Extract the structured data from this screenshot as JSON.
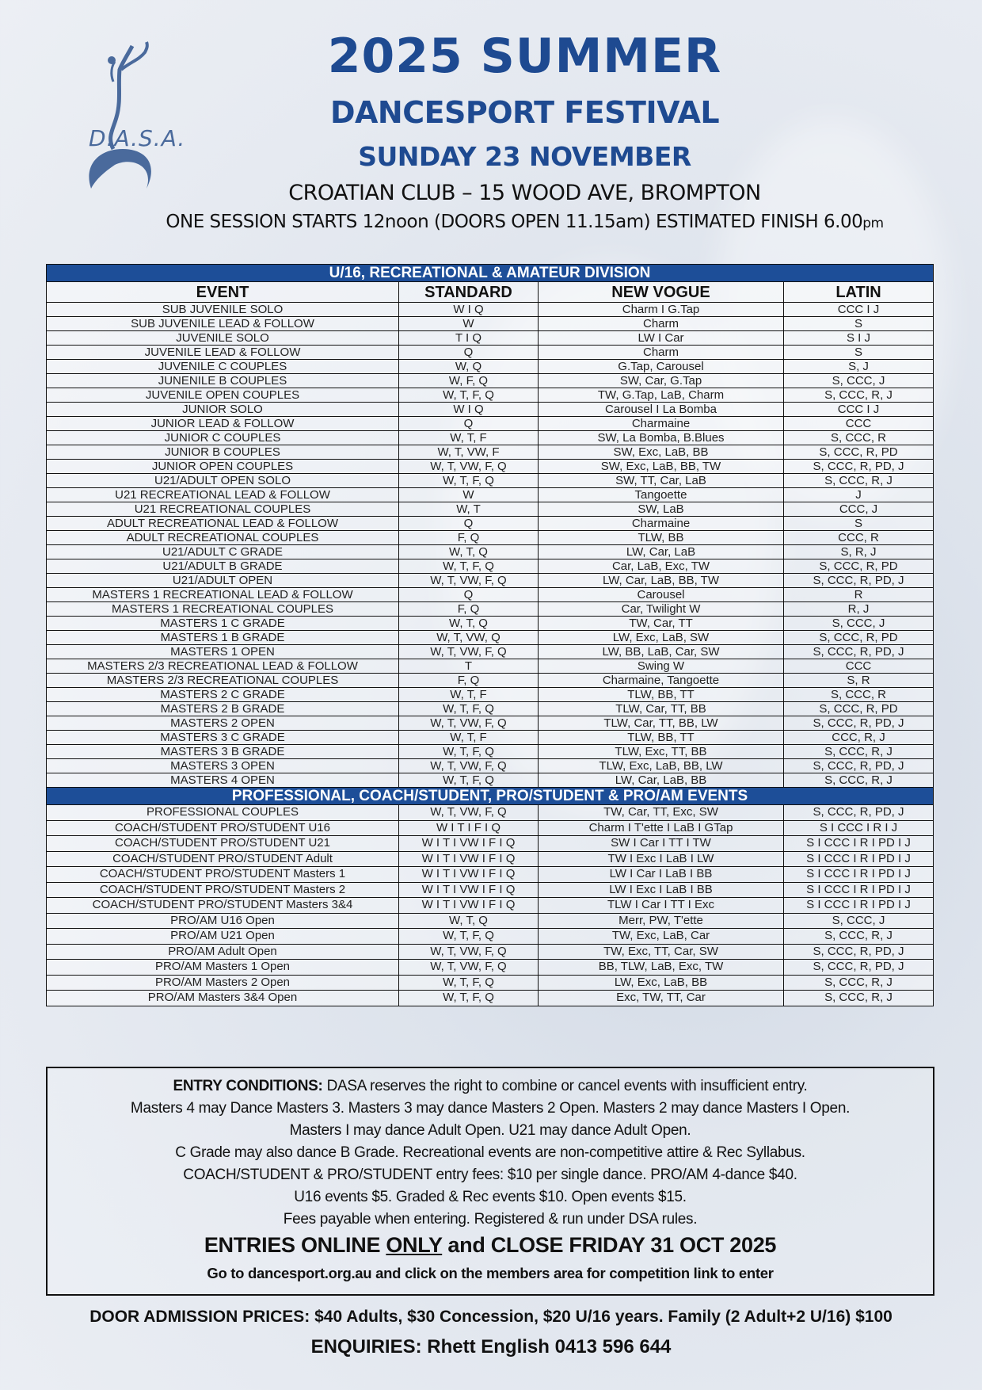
{
  "logo": {
    "text": "D.A.S.A.",
    "color": "#4a6a9c"
  },
  "header": {
    "title": "2025 SUMMER",
    "subtitle": "DANCESPORT FESTIVAL",
    "date": "SUNDAY 23 NOVEMBER",
    "venue": "CROATIAN CLUB – 15 WOOD AVE, BROMPTON",
    "session": "ONE SESSION STARTS 12noon (DOORS OPEN 11.15am) ESTIMATED FINISH 6.00",
    "session_suffix": "pm"
  },
  "colors": {
    "brand_blue": "#1e4a91",
    "section_bar": "#1d4e98"
  },
  "table": {
    "columns": [
      "EVENT",
      "STANDARD",
      "NEW VOGUE",
      "LATIN"
    ],
    "sections": [
      {
        "title": "U/16, RECREATIONAL & AMATEUR DIVISION",
        "rows": [
          [
            "SUB JUVENILE  SOLO",
            "W I Q",
            "Charm  I  G.Tap",
            "CCC  I  J"
          ],
          [
            "SUB JUVENILE  LEAD & FOLLOW",
            "W",
            "Charm",
            "S"
          ],
          [
            "JUVENILE  SOLO",
            "T I Q",
            "LW I Car",
            "S I J"
          ],
          [
            "JUVENILE  LEAD & FOLLOW",
            "Q",
            "Charm",
            "S"
          ],
          [
            "JUVENILE  C  COUPLES",
            "W, Q",
            "G.Tap, Carousel",
            "S, J"
          ],
          [
            "JUNENILE  B  COUPLES",
            "W, F, Q",
            "SW, Car, G.Tap",
            "S, CCC, J"
          ],
          [
            "JUVENILE  OPEN COUPLES",
            "W, T, F, Q",
            "TW, G.Tap, LaB, Charm",
            "S, CCC, R, J"
          ],
          [
            "JUNIOR  SOLO",
            "W I Q",
            "Carousel  I  La Bomba",
            "CCC  I  J"
          ],
          [
            "JUNIOR LEAD & FOLLOW",
            "Q",
            "Charmaine",
            "CCC"
          ],
          [
            "JUNIOR  C COUPLES",
            "W, T, F",
            "SW, La Bomba, B.Blues",
            "S, CCC, R"
          ],
          [
            "JUNIOR  B COUPLES",
            "W, T, VW, F",
            "SW, Exc, LaB, BB",
            "S, CCC, R, PD"
          ],
          [
            "JUNIOR  OPEN COUPLES",
            "W, T, VW, F, Q",
            "SW, Exc, LaB, BB, TW",
            "S, CCC, R, PD, J"
          ],
          [
            "U21/ADULT OPEN SOLO",
            "W, T, F, Q",
            "SW, TT, Car, LaB",
            "S, CCC, R, J"
          ],
          [
            "U21  RECREATIONAL LEAD & FOLLOW",
            "W",
            "Tangoette",
            "J"
          ],
          [
            "U21  RECREATIONAL COUPLES",
            "W, T",
            "SW, LaB",
            "CCC, J"
          ],
          [
            "ADULT  RECREATIONAL LEAD & FOLLOW",
            "Q",
            "Charmaine",
            "S"
          ],
          [
            "ADULT  RECREATIONAL COUPLES",
            "F, Q",
            "TLW, BB",
            "CCC, R"
          ],
          [
            "U21/ADULT  C GRADE",
            "W, T, Q",
            "LW, Car, LaB",
            "S, R, J"
          ],
          [
            "U21/ADULT  B GRADE",
            "W, T, F, Q",
            "Car, LaB, Exc, TW",
            "S, CCC, R, PD"
          ],
          [
            "U21/ADULT  OPEN",
            "W, T, VW, F, Q",
            "LW, Car, LaB, BB, TW",
            "S, CCC, R, PD, J"
          ],
          [
            "MASTERS 1  RECREATIONAL LEAD & FOLLOW",
            "Q",
            "Carousel",
            "R"
          ],
          [
            "MASTERS 1  RECREATIONAL COUPLES",
            "F, Q",
            "Car, Twilight W",
            "R, J"
          ],
          [
            "MASTERS 1  C GRADE",
            "W, T, Q",
            "TW, Car, TT",
            "S, CCC, J"
          ],
          [
            "MASTERS 1  B GRADE",
            "W, T, VW, Q",
            "LW, Exc, LaB, SW",
            "S, CCC, R, PD"
          ],
          [
            "MASTERS 1  OPEN",
            "W, T, VW, F, Q",
            "LW, BB, LaB, Car, SW",
            "S, CCC, R, PD, J"
          ],
          [
            "MASTERS 2/3  RECREATIONAL LEAD & FOLLOW",
            "T",
            "Swing W",
            "CCC"
          ],
          [
            "MASTERS 2/3  RECREATIONAL COUPLES",
            "F, Q",
            "Charmaine, Tangoette",
            "S, R"
          ],
          [
            "MASTERS 2  C GRADE",
            "W, T, F",
            "TLW, BB, TT",
            "S, CCC, R"
          ],
          [
            "MASTERS 2  B GRADE",
            "W, T, F, Q",
            "TLW, Car, TT, BB",
            "S, CCC, R, PD"
          ],
          [
            "MASTERS 2  OPEN",
            "W, T, VW, F, Q",
            "TLW, Car, TT, BB, LW",
            "S, CCC, R, PD, J"
          ],
          [
            "MASTERS 3  C GRADE",
            "W, T, F",
            "TLW, BB, TT",
            "CCC, R, J"
          ],
          [
            "MASTERS 3  B GRADE",
            "W, T, F, Q",
            "TLW, Exc, TT, BB",
            "S, CCC, R, J"
          ],
          [
            "MASTERS 3  OPEN",
            "W, T, VW, F, Q",
            "TLW, Exc, LaB, BB, LW",
            "S, CCC, R, PD, J"
          ],
          [
            "MASTERS 4  OPEN",
            "W, T, F, Q",
            "LW, Car, LaB, BB",
            "S, CCC, R, J"
          ]
        ]
      },
      {
        "title": "PROFESSIONAL, COACH/STUDENT, PRO/STUDENT & PRO/AM  EVENTS",
        "rows": [
          [
            "PROFESSIONAL COUPLES",
            "W, T, VW, F, Q",
            "TW, Car, TT, Exc, SW",
            "S, CCC, R, PD, J"
          ],
          [
            "COACH/STUDENT  PRO/STUDENT  U16",
            "W I T I F I Q",
            "Charm I T'ette I LaB I GTap",
            "S I CCC I R I J"
          ],
          [
            "COACH/STUDENT  PRO/STUDENT  U21",
            "W I T I VW I F I Q",
            "SW I Car I TT I TW",
            "S I CCC I R I PD I J"
          ],
          [
            "COACH/STUDENT  PRO/STUDENT  Adult",
            "W I T I VW I F I Q",
            "TW I Exc I LaB I LW",
            "S I CCC I R I PD I J"
          ],
          [
            "COACH/STUDENT  PRO/STUDENT  Masters 1",
            "W I T I VW I F I Q",
            "LW I Car I LaB I BB",
            "S I CCC I R I PD I J"
          ],
          [
            "COACH/STUDENT  PRO/STUDENT  Masters 2",
            "W I T I VW I F I Q",
            "LW I Exc I LaB I BB",
            "S I CCC I R I PD I J"
          ],
          [
            "COACH/STUDENT  PRO/STUDENT  Masters 3&4",
            "W I T I VW I F I Q",
            "TLW I Car I TT I Exc",
            "S I CCC I R I PD I J"
          ],
          [
            "PRO/AM U16 Open",
            "W, T, Q",
            "Merr, PW, T'ette",
            "S, CCC, J"
          ],
          [
            "PRO/AM U21 Open",
            "W, T, F, Q",
            "TW, Exc, LaB, Car",
            "S, CCC, R, J"
          ],
          [
            "PRO/AM Adult Open",
            "W, T, VW, F, Q",
            "TW, Exc, TT, Car, SW",
            "S, CCC, R, PD, J"
          ],
          [
            "PRO/AM Masters 1  Open",
            "W, T, VW, F, Q",
            "BB, TLW, LaB, Exc, TW",
            "S, CCC, R, PD, J"
          ],
          [
            "PRO/AM Masters 2  Open",
            "W, T, F, Q",
            "LW, Exc, LaB, BB",
            "S, CCC, R, J"
          ],
          [
            "PRO/AM Masters 3&4  Open",
            "W, T, F, Q",
            "Exc, TW, TT, Car",
            "S, CCC, R, J"
          ]
        ]
      }
    ]
  },
  "conditions": {
    "label": "ENTRY CONDITIONS:",
    "lines": [
      " DASA reserves the right to combine or cancel events with insufficient entry.",
      "Masters 4 may Dance Masters 3. Masters 3 may dance Masters 2 Open. Masters 2 may dance Masters I Open.",
      "Masters I may dance Adult Open. U21 may dance Adult Open.",
      "C Grade may also dance B Grade. Recreational events are non-competitive attire & Rec Syllabus.",
      "COACH/STUDENT & PRO/STUDENT entry fees: $10 per single dance. PRO/AM 4-dance $40.",
      "U16 events $5. Graded & Rec events $10. Open events $15.",
      "Fees payable when entering. Registered & run under DSA rules."
    ],
    "close_pre": "ENTRIES ONLINE ",
    "close_emph": "ONLY",
    "close_post": " and CLOSE FRIDAY 31 OCT 2025",
    "link_text": "Go to dancesport.org.au and click on the members area for competition link to enter"
  },
  "footer": {
    "admission": "DOOR ADMISSION PRICES: $40 Adults, $30 Concession, $20 U/16 years. Family (2 Adult+2 U/16) $100",
    "enquiries": "ENQUIRIES: Rhett English 0413 596 644"
  }
}
